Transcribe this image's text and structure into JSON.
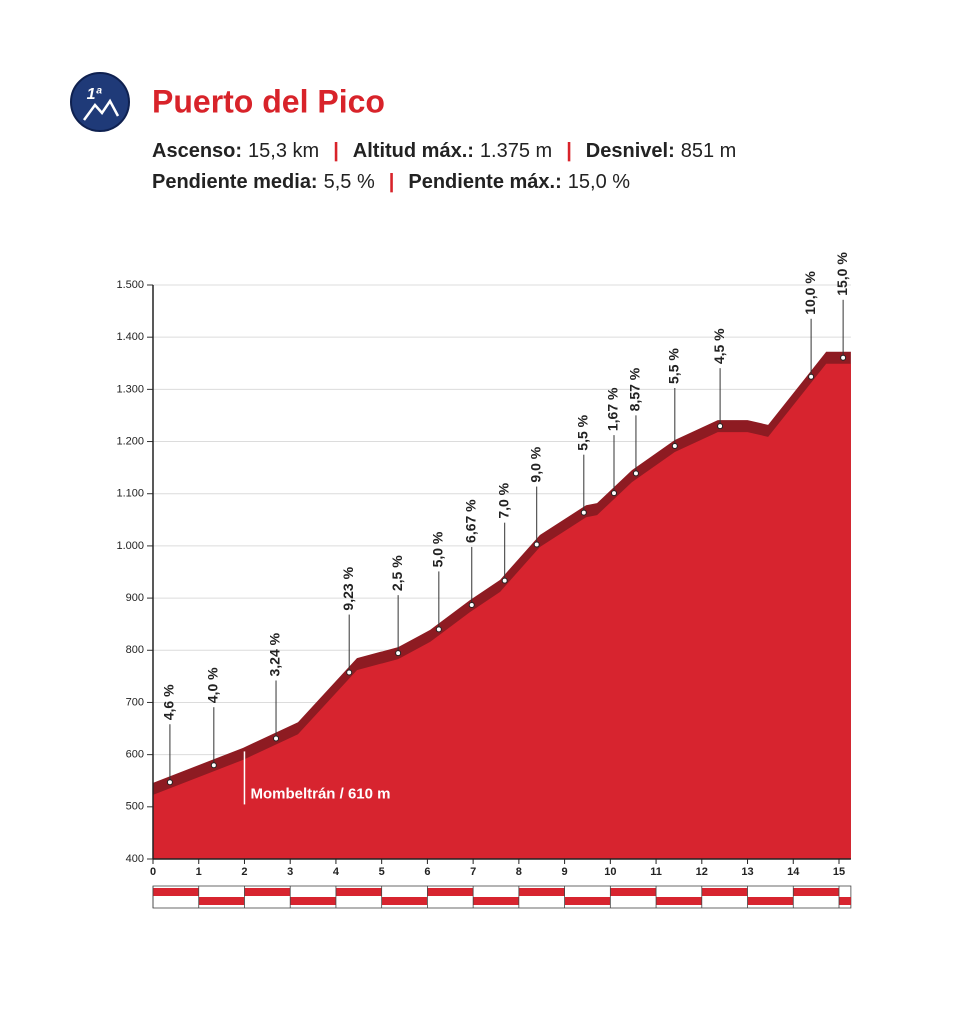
{
  "badge": "1ª",
  "chart_data": {
    "type": "area",
    "title": "Puerto del Pico",
    "stats": [
      [
        {
          "label": "Ascenso:",
          "value": "15,3 km"
        },
        {
          "label": "Altitud máx.:",
          "value": "1.375 m"
        },
        {
          "label": "Desnivel:",
          "value": "851 m"
        }
      ],
      [
        {
          "label": "Pendiente media:",
          "value": "5,5 %"
        },
        {
          "label": "Pendiente máx.:",
          "value": "15,0 %"
        }
      ]
    ],
    "x": [
      0,
      1.97,
      3.17,
      4.46,
      5.36,
      6.06,
      6.93,
      7.59,
      8.46,
      9.47,
      9.71,
      10.47,
      11.41,
      12.35,
      13.0,
      13.45,
      14.72,
      15.26
    ],
    "values": [
      546,
      613,
      662,
      785,
      806,
      839,
      896,
      935,
      1021,
      1078,
      1082,
      1145,
      1203,
      1241,
      1241,
      1232,
      1372,
      1372
    ],
    "color": "#d7242f",
    "shade_color": "#8e1b22",
    "xlim": [
      0,
      15.26
    ],
    "ylim": [
      400,
      1500
    ],
    "xticks": [
      0,
      1,
      2,
      3,
      4,
      5,
      6,
      7,
      8,
      9,
      10,
      11,
      12,
      13,
      14,
      15
    ],
    "yticks": [
      400,
      500,
      600,
      700,
      800,
      900,
      {
        "value": 1000,
        "label": "1.000"
      },
      {
        "value": 1100,
        "label": "1.100"
      },
      {
        "value": 1200,
        "label": "1.200"
      },
      {
        "value": 1300,
        "label": "1.300"
      },
      {
        "value": 1400,
        "label": "1.400"
      },
      {
        "value": 1500,
        "label": "1.500"
      }
    ],
    "grid": true,
    "gradients": {
      "x": [
        0.37,
        1.33,
        2.69,
        4.29,
        5.36,
        6.25,
        6.97,
        7.69,
        8.39,
        9.42,
        10.08,
        10.56,
        11.41,
        12.4,
        14.39,
        15.09
      ],
      "values": [
        4.6,
        4.0,
        3.24,
        9.23,
        2.5,
        5.0,
        6.67,
        7.0,
        9.0,
        5.5,
        1.67,
        8.57,
        5.5,
        4.5,
        10.0,
        15.0
      ],
      "value_labels": [
        "4,6 %",
        "4,0 %",
        "3,24 %",
        "9,23 %",
        "2,5 %",
        "5,0 %",
        "6,67 %",
        "7,0 %",
        "9,0 %",
        "5,5 %",
        "1,67 %",
        "8,57 %",
        "5,5 %",
        "4,5 %",
        "10,0 %",
        "15,0 %"
      ]
    },
    "annotation": {
      "x": 2,
      "value": 610,
      "label": "Mombeltrán / 610 m"
    }
  }
}
